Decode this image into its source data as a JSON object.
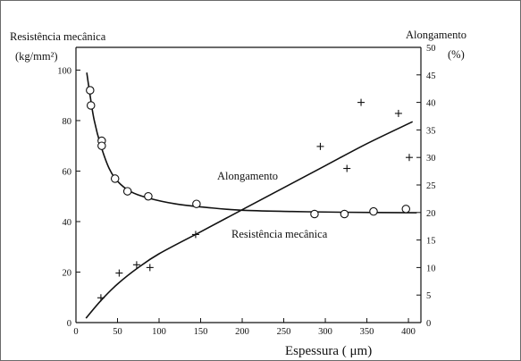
{
  "chart_data": {
    "type": "scatter",
    "xlabel": "Espessura ( μm)",
    "ylabel_left": "Resistência mecânica",
    "ylabel_left_unit": "(kg/mm²)",
    "ylabel_right": "Alongamento",
    "ylabel_right_unit": "(%)",
    "x_ticks": [
      0,
      50,
      100,
      150,
      200,
      250,
      300,
      350,
      400
    ],
    "y_left_ticks": [
      0,
      20,
      40,
      60,
      80,
      100
    ],
    "y_right_ticks": [
      0,
      5,
      10,
      15,
      20,
      25,
      30,
      35,
      40,
      45,
      50
    ],
    "xlim": [
      0,
      415
    ],
    "ylim_left": [
      0,
      109
    ],
    "ylim_right": [
      0,
      50
    ],
    "grid": false,
    "series": [
      {
        "name": "Resistência mecânica",
        "axis": "left",
        "marker": "circle",
        "points": [
          {
            "x": 17,
            "y": 92
          },
          {
            "x": 18,
            "y": 86
          },
          {
            "x": 31,
            "y": 72
          },
          {
            "x": 31,
            "y": 70
          },
          {
            "x": 47,
            "y": 57
          },
          {
            "x": 62,
            "y": 52
          },
          {
            "x": 87,
            "y": 50
          },
          {
            "x": 145,
            "y": 47
          },
          {
            "x": 287,
            "y": 43
          },
          {
            "x": 323,
            "y": 43
          },
          {
            "x": 358,
            "y": 44
          },
          {
            "x": 397,
            "y": 45
          }
        ],
        "curve": [
          {
            "x": 13,
            "y": 99
          },
          {
            "x": 17,
            "y": 90
          },
          {
            "x": 22,
            "y": 80
          },
          {
            "x": 30,
            "y": 70
          },
          {
            "x": 40,
            "y": 61
          },
          {
            "x": 50,
            "y": 56
          },
          {
            "x": 65,
            "y": 52
          },
          {
            "x": 85,
            "y": 49.5
          },
          {
            "x": 120,
            "y": 47
          },
          {
            "x": 160,
            "y": 45.5
          },
          {
            "x": 200,
            "y": 44.5
          },
          {
            "x": 260,
            "y": 44
          },
          {
            "x": 320,
            "y": 43.7
          },
          {
            "x": 410,
            "y": 43.5
          }
        ]
      },
      {
        "name": "Alongamento",
        "axis": "right",
        "marker": "plus",
        "points": [
          {
            "x": 30,
            "y": 4.5
          },
          {
            "x": 52,
            "y": 9
          },
          {
            "x": 73,
            "y": 10.5
          },
          {
            "x": 89,
            "y": 10
          },
          {
            "x": 144,
            "y": 16
          },
          {
            "x": 294,
            "y": 32
          },
          {
            "x": 326,
            "y": 28
          },
          {
            "x": 343,
            "y": 40
          },
          {
            "x": 388,
            "y": 38
          },
          {
            "x": 401,
            "y": 30
          }
        ],
        "curve": [
          {
            "x": 12,
            "y": 0.8
          },
          {
            "x": 30,
            "y": 4
          },
          {
            "x": 50,
            "y": 7
          },
          {
            "x": 75,
            "y": 10
          },
          {
            "x": 100,
            "y": 12.5
          },
          {
            "x": 150,
            "y": 16.5
          },
          {
            "x": 200,
            "y": 20.5
          },
          {
            "x": 250,
            "y": 24.5
          },
          {
            "x": 300,
            "y": 28.5
          },
          {
            "x": 350,
            "y": 32.5
          },
          {
            "x": 405,
            "y": 36.5
          }
        ]
      }
    ]
  }
}
